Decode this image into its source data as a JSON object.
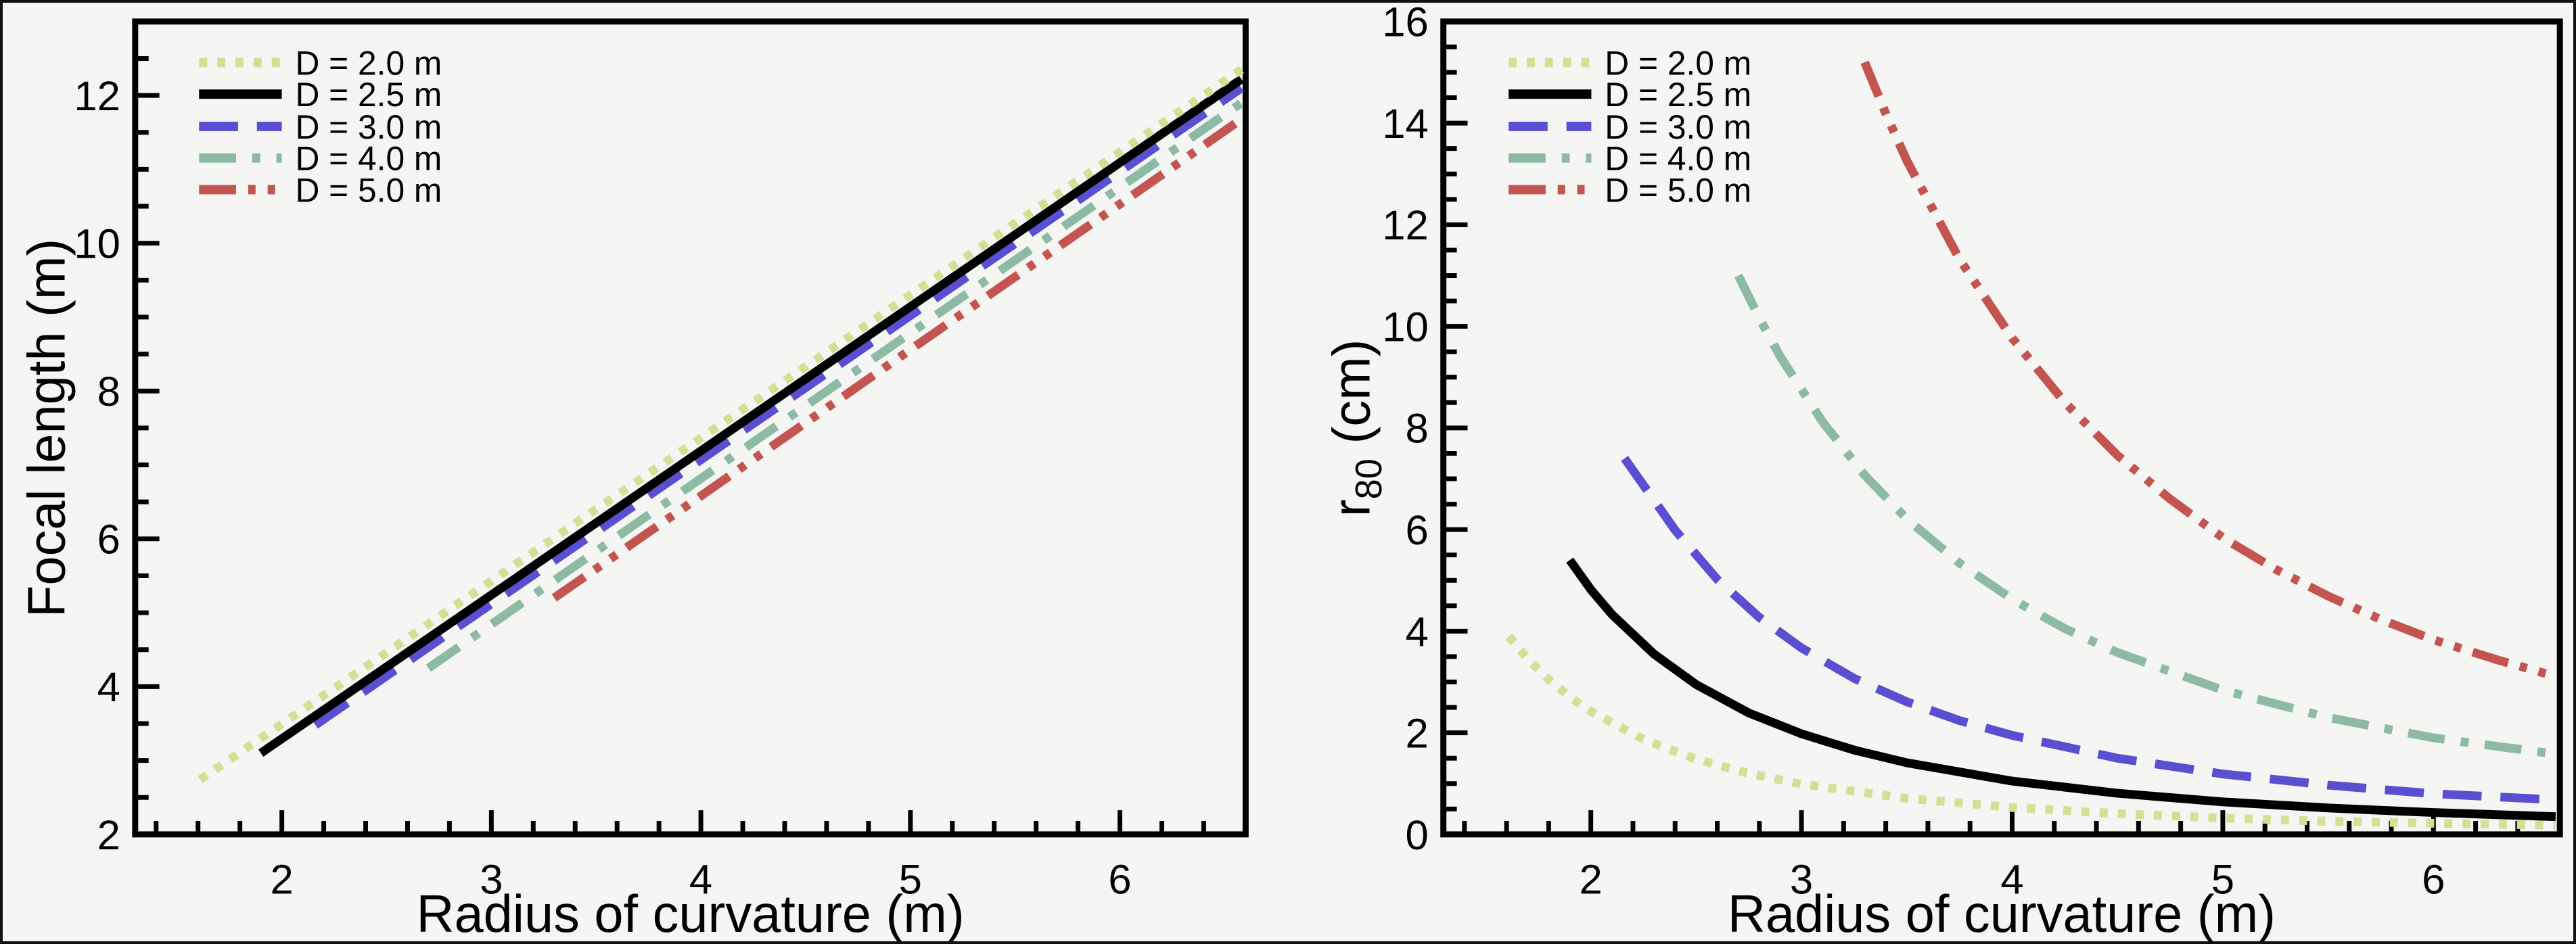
{
  "figure": {
    "background": "#f5f5f4",
    "frame_color": "#000000",
    "text_color": "#000000"
  },
  "legend": {
    "position": "top-left",
    "entries": [
      {
        "label": "D = 2.0 m",
        "color": "#d6de96",
        "style": "dotted"
      },
      {
        "label": "D = 2.5 m",
        "color": "#000000",
        "style": "solid"
      },
      {
        "label": "D = 3.0 m",
        "color": "#5a4fd1",
        "style": "dashed"
      },
      {
        "label": "D = 4.0 m",
        "color": "#8cbaa4",
        "style": "dash-dot"
      },
      {
        "label": "D = 5.0 m",
        "color": "#c4544f",
        "style": "dash-dot-dot"
      }
    ]
  },
  "chart_data": [
    {
      "type": "line",
      "panel": "left",
      "title": "",
      "xlabel": "Radius of curvature (m)",
      "ylabel": "Focal length (m)",
      "xlim": [
        1.3,
        6.6
      ],
      "ylim": [
        2,
        13
      ],
      "xticks": [
        2,
        3,
        4,
        5,
        6
      ],
      "yticks": [
        2,
        4,
        6,
        8,
        10,
        12
      ],
      "x_minor_step": 0.2,
      "y_minor_step": 0.5,
      "grid": false,
      "legend_position": "top-left",
      "series": [
        {
          "name": "D = 2.0 m",
          "color": "#d6de96",
          "style": "dotted",
          "x": [
            1.61,
            2.5,
            3.5,
            4.5,
            5.5,
            6.58
          ],
          "y": [
            2.74,
            4.46,
            6.4,
            8.33,
            10.27,
            12.35
          ]
        },
        {
          "name": "D = 2.5 m",
          "color": "#000000",
          "style": "solid",
          "x": [
            1.9,
            3.0,
            4.0,
            5.0,
            6.0,
            6.58
          ],
          "y": [
            3.1,
            5.24,
            7.19,
            9.14,
            11.09,
            12.22
          ]
        },
        {
          "name": "D = 3.0 m",
          "color": "#5a4fd1",
          "style": "dashed",
          "x": [
            2.16,
            3.0,
            4.0,
            5.0,
            6.0,
            6.58
          ],
          "y": [
            3.48,
            5.12,
            7.07,
            9.02,
            10.97,
            12.1
          ]
        },
        {
          "name": "D = 4.0 m",
          "color": "#8cbaa4",
          "style": "dash-dot",
          "x": [
            2.7,
            3.5,
            4.5,
            5.5,
            6.58
          ],
          "y": [
            4.25,
            5.83,
            7.8,
            9.77,
            11.9
          ]
        },
        {
          "name": "D = 5.0 m",
          "color": "#c4544f",
          "style": "dash-dot-dot",
          "x": [
            3.3,
            4.0,
            5.0,
            6.0,
            6.58
          ],
          "y": [
            5.2,
            6.58,
            8.56,
            10.53,
            11.68
          ]
        }
      ]
    },
    {
      "type": "line",
      "panel": "right",
      "title": "",
      "xlabel": "Radius of curvature (m)",
      "ylabel": "r80 (cm)",
      "ylabel_parts": [
        {
          "t": "r"
        },
        {
          "t": "80",
          "sub": true
        },
        {
          "t": " (cm)"
        }
      ],
      "xlim": [
        1.3,
        6.6
      ],
      "ylim": [
        0,
        16
      ],
      "xticks": [
        2,
        3,
        4,
        5,
        6
      ],
      "yticks": [
        0,
        2,
        4,
        6,
        8,
        10,
        12,
        14,
        16
      ],
      "x_minor_step": 0.2,
      "y_minor_step": 0.5,
      "grid": false,
      "legend_position": "top-left",
      "series": [
        {
          "name": "D = 2.0 m",
          "color": "#d6de96",
          "style": "dotted",
          "x": [
            1.61,
            1.7,
            1.8,
            1.9,
            2.0,
            2.25,
            2.5,
            2.75,
            3.0,
            3.5,
            4.0,
            4.5,
            5.0,
            5.5,
            6.0,
            6.58
          ],
          "y": [
            3.9,
            3.46,
            3.05,
            2.71,
            2.42,
            1.87,
            1.48,
            1.2,
            0.99,
            0.71,
            0.53,
            0.41,
            0.32,
            0.26,
            0.22,
            0.18
          ]
        },
        {
          "name": "D = 2.5 m",
          "color": "#000000",
          "style": "solid",
          "x": [
            1.9,
            2.0,
            2.1,
            2.3,
            2.5,
            2.75,
            3.0,
            3.25,
            3.5,
            4.0,
            4.5,
            5.0,
            5.5,
            6.0,
            6.58
          ],
          "y": [
            5.4,
            4.82,
            4.33,
            3.55,
            2.95,
            2.39,
            1.98,
            1.66,
            1.41,
            1.05,
            0.81,
            0.64,
            0.52,
            0.43,
            0.35
          ]
        },
        {
          "name": "D = 3.0 m",
          "color": "#5a4fd1",
          "style": "dashed",
          "x": [
            2.16,
            2.3,
            2.4,
            2.6,
            2.8,
            3.0,
            3.25,
            3.5,
            3.75,
            4.0,
            4.5,
            5.0,
            5.5,
            6.0,
            6.58
          ],
          "y": [
            7.4,
            6.58,
            5.99,
            5.02,
            4.27,
            3.67,
            3.07,
            2.61,
            2.24,
            1.95,
            1.5,
            1.19,
            0.97,
            0.8,
            0.68
          ]
        },
        {
          "name": "D = 4.0 m",
          "color": "#8cbaa4",
          "style": "dash-dot",
          "x": [
            2.7,
            2.8,
            2.9,
            3.1,
            3.3,
            3.5,
            3.75,
            4.0,
            4.25,
            4.5,
            5.0,
            5.5,
            6.0,
            6.58
          ],
          "y": [
            11.0,
            10.16,
            9.4,
            8.12,
            7.07,
            6.21,
            5.34,
            4.63,
            4.05,
            3.58,
            2.84,
            2.3,
            1.9,
            1.58
          ]
        },
        {
          "name": "D = 5.0 m",
          "color": "#c4544f",
          "style": "dash-dot-dot",
          "x": [
            3.3,
            3.4,
            3.5,
            3.75,
            4.0,
            4.25,
            4.5,
            4.75,
            5.0,
            5.25,
            5.5,
            5.75,
            6.0,
            6.3,
            6.58
          ],
          "y": [
            15.2,
            14.19,
            13.26,
            11.32,
            9.77,
            8.5,
            7.46,
            6.6,
            5.84,
            5.22,
            4.69,
            4.23,
            3.83,
            3.44,
            3.11
          ]
        }
      ]
    }
  ]
}
